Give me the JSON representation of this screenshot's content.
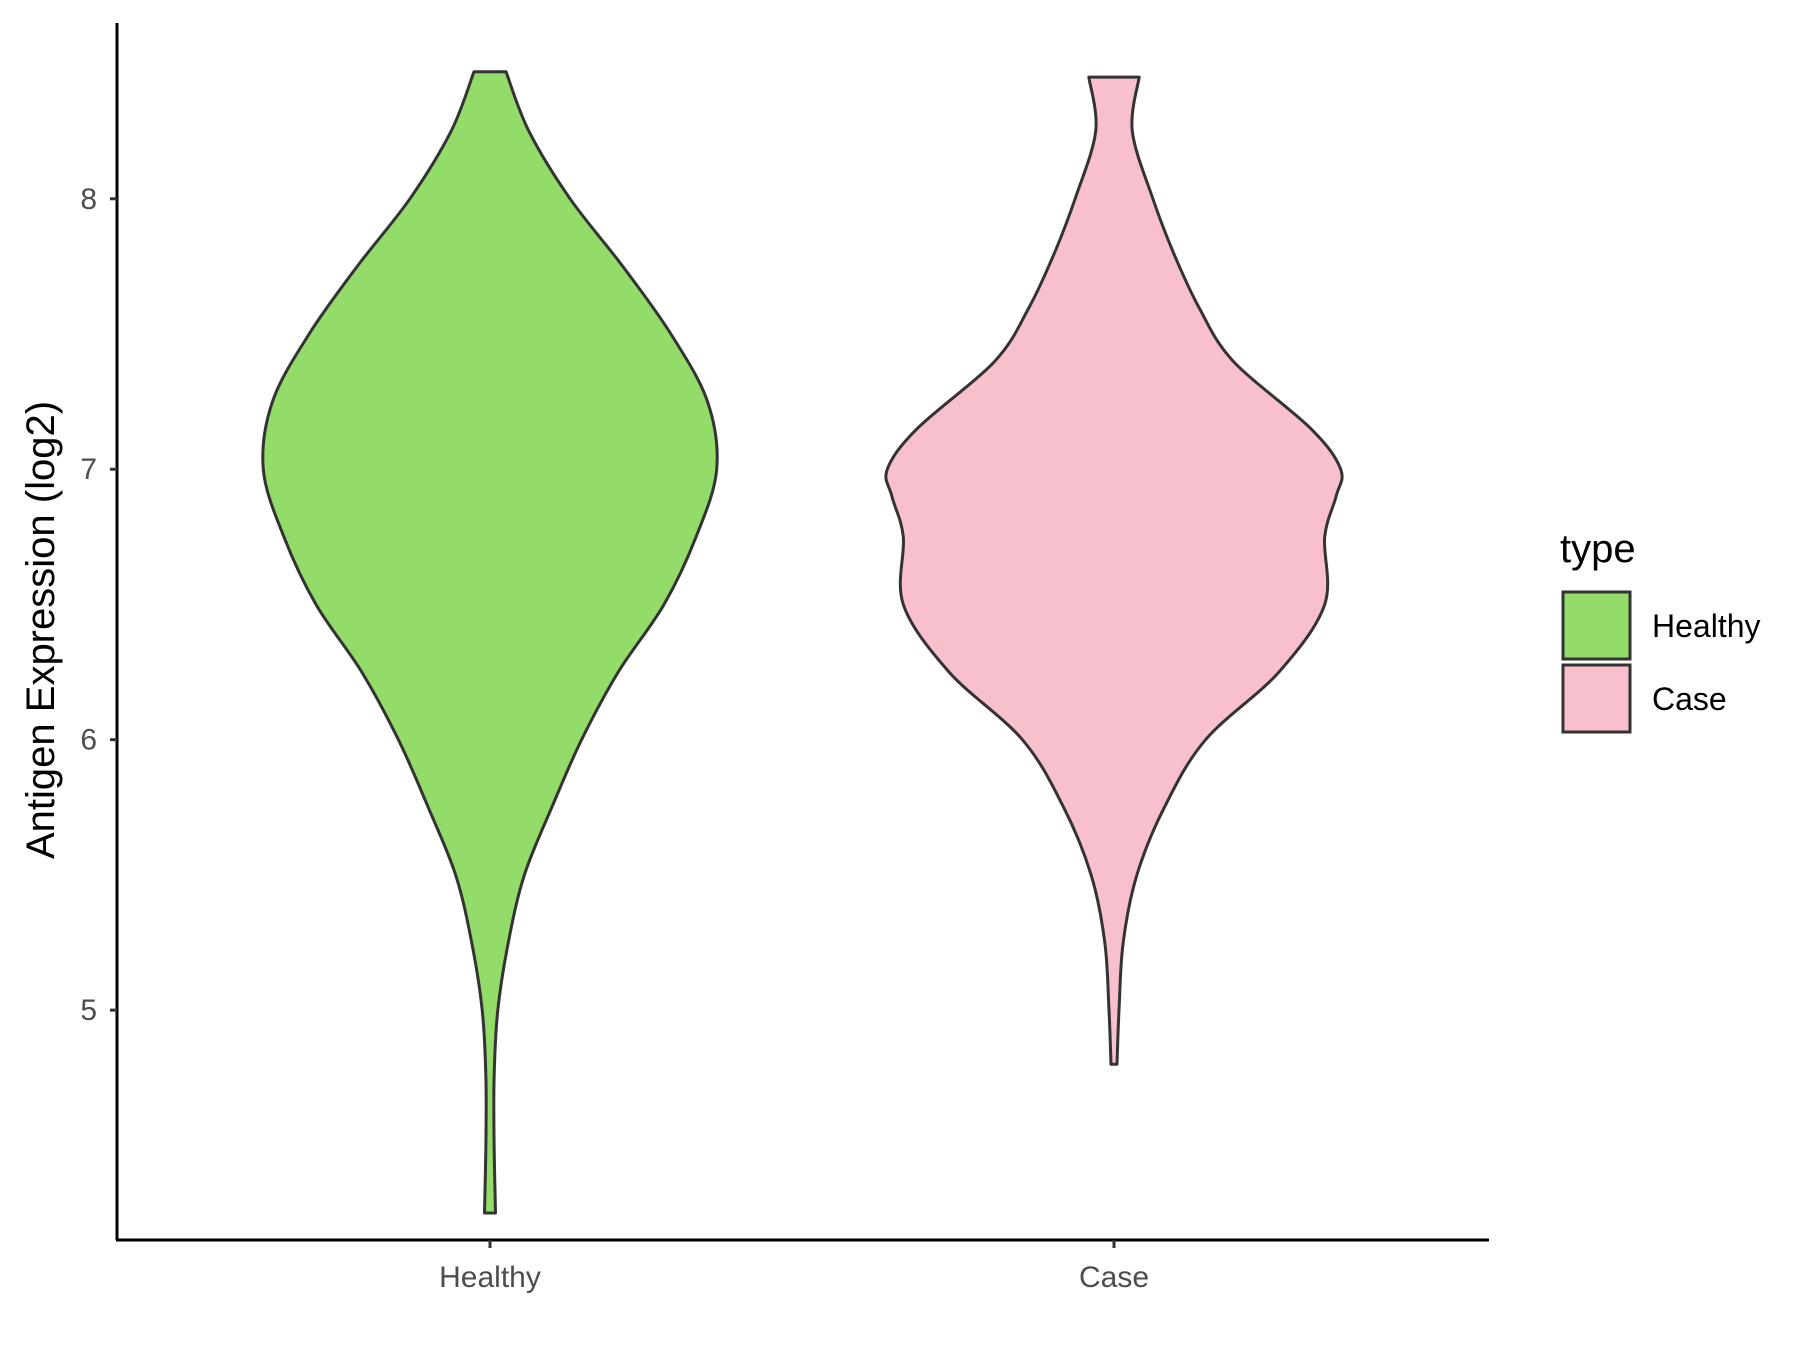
{
  "chart_data": {
    "type": "violin",
    "xlabel": "",
    "ylabel": "Antigen Expression (log2)",
    "ylim": [
      4.15,
      8.65
    ],
    "y_ticks": [
      5,
      6,
      7,
      8
    ],
    "y_tick_labels": [
      "5",
      "6",
      "7",
      "8"
    ],
    "categories": [
      "Healthy",
      "Case"
    ],
    "grid": false,
    "legend": {
      "title": "type",
      "placement": "right",
      "entries": [
        {
          "label": "Healthy",
          "color": "#93DC6A"
        },
        {
          "label": "Case",
          "color": "#F8C0CC"
        }
      ]
    },
    "series": [
      {
        "name": "Healthy",
        "color": "#93DC6A",
        "y_min": 4.25,
        "y_max": 8.47,
        "density_profile": [
          [
            4.25,
            0.024
          ],
          [
            4.5,
            0.018
          ],
          [
            4.75,
            0.018
          ],
          [
            5.0,
            0.034
          ],
          [
            5.25,
            0.08
          ],
          [
            5.5,
            0.15
          ],
          [
            5.75,
            0.27
          ],
          [
            6.0,
            0.4
          ],
          [
            6.25,
            0.56
          ],
          [
            6.5,
            0.76
          ],
          [
            6.75,
            0.9
          ],
          [
            7.0,
            0.99
          ],
          [
            7.25,
            0.95
          ],
          [
            7.5,
            0.79
          ],
          [
            7.75,
            0.58
          ],
          [
            8.0,
            0.35
          ],
          [
            8.25,
            0.17
          ],
          [
            8.47,
            0.07
          ]
        ]
      },
      {
        "name": "Case",
        "color": "#F8C0CC",
        "y_min": 4.8,
        "y_max": 8.45,
        "density_profile": [
          [
            4.8,
            0.013
          ],
          [
            5.0,
            0.022
          ],
          [
            5.25,
            0.04
          ],
          [
            5.5,
            0.1
          ],
          [
            5.75,
            0.22
          ],
          [
            6.0,
            0.4
          ],
          [
            6.25,
            0.72
          ],
          [
            6.5,
            0.92
          ],
          [
            6.75,
            0.92
          ],
          [
            6.9,
            0.97
          ],
          [
            7.0,
            0.99
          ],
          [
            7.15,
            0.86
          ],
          [
            7.4,
            0.52
          ],
          [
            7.6,
            0.37
          ],
          [
            7.8,
            0.26
          ],
          [
            8.0,
            0.17
          ],
          [
            8.25,
            0.08
          ],
          [
            8.45,
            0.11
          ]
        ]
      }
    ]
  }
}
